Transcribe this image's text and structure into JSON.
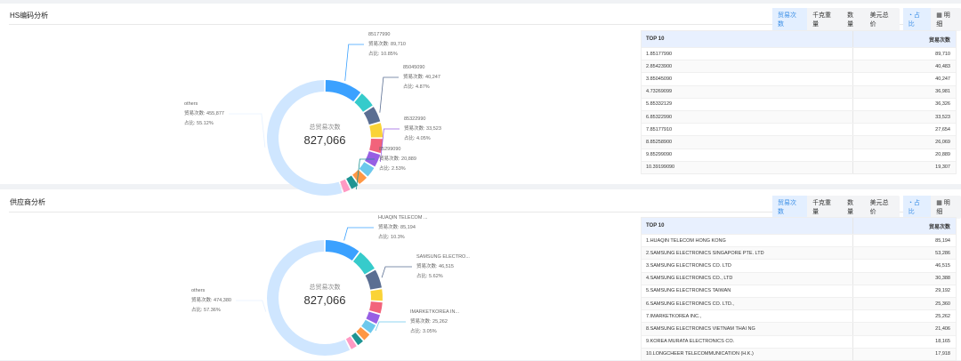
{
  "toolbar": {
    "buttons": [
      "贸易次数",
      "千克重量",
      "数量",
      "美元总价"
    ],
    "active": "贸易次数",
    "view_pie": "占比",
    "view_detail": "明细",
    "pie_icon": "donut-icon",
    "detail_icon": "table-icon"
  },
  "colors": [
    "#3BA1FF",
    "#36CBCB",
    "#5A6E92",
    "#FAD337",
    "#F2637B",
    "#975FE4",
    "#6DC8EC",
    "#FF9845",
    "#1E9493",
    "#FF99C3"
  ],
  "others_color": "#CFE6FF",
  "panels": [
    {
      "title": "HS编码分析",
      "table": {
        "col1": "TOP 10",
        "col2": "贸易次数",
        "rows": [
          [
            "1.85177990",
            "89,710"
          ],
          [
            "2.85423900",
            "40,483"
          ],
          [
            "3.85045090",
            "40,247"
          ],
          [
            "4.73269099",
            "36,981"
          ],
          [
            "5.85332129",
            "36,326"
          ],
          [
            "6.85322990",
            "33,523"
          ],
          [
            "7.85177910",
            "27,654"
          ],
          [
            "8.85258900",
            "26,069"
          ],
          [
            "9.85299090",
            "20,889"
          ],
          [
            "10.39199090",
            "19,307"
          ]
        ]
      },
      "chart_data": {
        "type": "pie",
        "center_label": "总贸易次数",
        "center_value": "827,066",
        "categories": [
          "85177990",
          "85423900",
          "85045090",
          "73269099",
          "85332129",
          "85322990",
          "85177910",
          "85258900",
          "85299090",
          "39199090",
          "others"
        ],
        "values": [
          89710,
          40483,
          40247,
          36981,
          36326,
          33523,
          27654,
          26069,
          20889,
          19307,
          455877
        ],
        "labels": [
          {
            "index": 0,
            "name": "85177990",
            "count": "贸易次数: 89,710",
            "pct": "占比: 10.85%"
          },
          {
            "index": 2,
            "name": "85045090",
            "count": "贸易次数: 40,247",
            "pct": "占比: 4.87%"
          },
          {
            "index": 5,
            "name": "85322990",
            "count": "贸易次数: 33,523",
            "pct": "占比: 4.05%"
          },
          {
            "index": 8,
            "name": "85299090",
            "count": "贸易次数: 20,889",
            "pct": "占比: 2.53%"
          },
          {
            "index": 10,
            "name": "others",
            "count": "贸易次数: 455,877",
            "pct": "占比: 55.12%"
          }
        ]
      }
    },
    {
      "title": "供应商分析",
      "table": {
        "col1": "TOP 10",
        "col2": "贸易次数",
        "rows": [
          [
            "1.HUAQIN TELECOM HONG KONG",
            "85,194"
          ],
          [
            "2.SAMSUNG ELECTRONICS SINGAPORE PTE. LTD",
            "53,286"
          ],
          [
            "3.SAMSUNG ELECTRONICS CO. LTD",
            "46,515"
          ],
          [
            "4.SAMSUNG ELECTRONICS CO., LTD",
            "30,388"
          ],
          [
            "5.SAMSUNG ELECTRONICS TAIWAN",
            "29,192"
          ],
          [
            "6.SAMSUNG ELECTRONICS CO. LTD.,",
            "25,360"
          ],
          [
            "7.IMARKETKOREA INC.,",
            "25,262"
          ],
          [
            "8.SAMSUNG ELECTRONICS VIETNAM THAI NG",
            "21,406"
          ],
          [
            "9.KOREA MURATA ELECTRONICS CO.",
            "18,165"
          ],
          [
            "10.LONGCHEER TELECOMMUNICATION (H.K.)",
            "17,918"
          ]
        ]
      },
      "chart_data": {
        "type": "pie",
        "center_label": "总贸易次数",
        "center_value": "827,066",
        "categories": [
          "HUAQIN TELECOM HONG KONG",
          "SAMSUNG ELECTRONICS SINGAPORE PTE. LTD",
          "SAMSUNG ELECTRONICS CO. LTD",
          "SAMSUNG ELECTRONICS CO., LTD",
          "SAMSUNG ELECTRONICS TAIWAN",
          "SAMSUNG ELECTRONICS CO. LTD.,",
          "IMARKETKOREA INC.,",
          "SAMSUNG ELECTRONICS VIETNAM THAI NG",
          "KOREA MURATA ELECTRONICS CO.",
          "LONGCHEER TELECOMMUNICATION (H.K.)",
          "others"
        ],
        "values": [
          85194,
          53286,
          46515,
          30388,
          29192,
          25360,
          25262,
          21406,
          18165,
          17918,
          474380
        ],
        "labels": [
          {
            "index": 0,
            "name": "HUAQIN TELECOM ...",
            "count": "贸易次数: 85,194",
            "pct": "占比: 10.3%"
          },
          {
            "index": 2,
            "name": "SAMSUNG ELECTRO...",
            "count": "贸易次数: 46,515",
            "pct": "占比: 5.62%"
          },
          {
            "index": 6,
            "name": "IMARKETKOREA IN...",
            "count": "贸易次数: 25,262",
            "pct": "占比: 3.05%"
          },
          {
            "index": 10,
            "name": "others",
            "count": "贸易次数: 474,380",
            "pct": "占比: 57.36%"
          }
        ]
      }
    }
  ]
}
